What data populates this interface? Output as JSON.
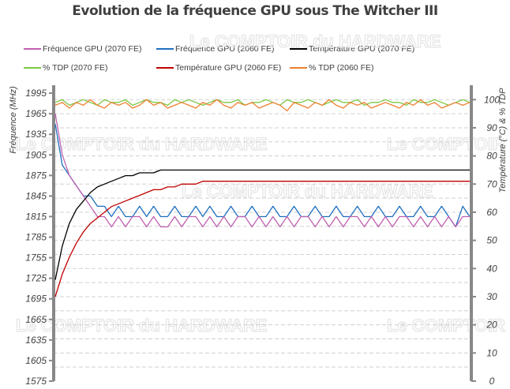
{
  "chart_data": {
    "type": "line",
    "title": "Evolution de la fréquence GPU sous The Witcher III",
    "ylabel": "Fréquence (MHz)",
    "y2label": "Température (°C) & % TDP",
    "ylim": [
      1575,
      2002
    ],
    "y2lim": [
      0,
      104
    ],
    "yticks": [
      1575,
      1605,
      1635,
      1665,
      1695,
      1725,
      1755,
      1785,
      1815,
      1845,
      1875,
      1905,
      1935,
      1965,
      1995
    ],
    "y2ticks": [
      0,
      10,
      20,
      30,
      40,
      50,
      60,
      70,
      80,
      90,
      100
    ],
    "grid": true,
    "legend_placement": "top",
    "x": [
      0,
      1,
      2,
      3,
      4,
      5,
      6,
      7,
      8,
      9,
      10,
      11,
      12,
      13,
      14,
      15,
      16,
      17,
      18,
      19,
      20,
      21,
      22,
      23,
      24,
      25,
      26,
      27,
      28,
      29,
      30,
      31,
      32,
      33,
      34,
      35,
      36,
      37,
      38,
      39,
      40,
      41,
      42,
      43,
      44,
      45,
      46,
      47,
      48,
      49,
      50,
      51,
      52,
      53,
      54,
      55,
      56,
      57,
      58,
      59
    ],
    "series": [
      {
        "name": "Fréquence GPU (2070 FE)",
        "axis": "left",
        "color": "#c060b0",
        "values": [
          1965,
          1905,
          1875,
          1860,
          1845,
          1830,
          1815,
          1815,
          1800,
          1815,
          1800,
          1815,
          1815,
          1800,
          1815,
          1800,
          1800,
          1815,
          1800,
          1815,
          1815,
          1800,
          1815,
          1800,
          1815,
          1800,
          1815,
          1815,
          1800,
          1815,
          1800,
          1815,
          1800,
          1815,
          1800,
          1815,
          1815,
          1800,
          1815,
          1800,
          1815,
          1800,
          1815,
          1815,
          1800,
          1815,
          1800,
          1815,
          1800,
          1815,
          1815,
          1800,
          1815,
          1800,
          1815,
          1800,
          1815,
          1800,
          1815,
          1815
        ]
      },
      {
        "name": "Fréquence GPU (2060 FE)",
        "axis": "left",
        "color": "#1f6fbf",
        "values": [
          1950,
          1890,
          1875,
          1860,
          1845,
          1845,
          1830,
          1830,
          1815,
          1830,
          1815,
          1815,
          1830,
          1815,
          1830,
          1815,
          1815,
          1830,
          1815,
          1815,
          1830,
          1815,
          1830,
          1815,
          1815,
          1830,
          1815,
          1815,
          1830,
          1815,
          1815,
          1830,
          1815,
          1815,
          1830,
          1815,
          1815,
          1830,
          1815,
          1815,
          1830,
          1815,
          1815,
          1830,
          1815,
          1815,
          1830,
          1815,
          1815,
          1830,
          1815,
          1815,
          1830,
          1815,
          1815,
          1830,
          1815,
          1800,
          1830,
          1815
        ]
      },
      {
        "name": "Température GPU  (2070 FE)",
        "axis": "right",
        "color": "#000000",
        "values": [
          36,
          48,
          56,
          61,
          64,
          67,
          69,
          70,
          71,
          72,
          73,
          73,
          74,
          74,
          74,
          75,
          75,
          75,
          75,
          75,
          75,
          75,
          75,
          75,
          75,
          75,
          75,
          75,
          75,
          75,
          75,
          75,
          75,
          75,
          75,
          75,
          75,
          75,
          75,
          75,
          75,
          75,
          75,
          75,
          75,
          75,
          75,
          75,
          75,
          75,
          75,
          75,
          75,
          75,
          75,
          75,
          75,
          75,
          75,
          75
        ]
      },
      {
        "name": "% TDP (2070 FE)",
        "axis": "right",
        "color": "#7ac943",
        "values": [
          99,
          100,
          98,
          99,
          100,
          99,
          98,
          100,
          99,
          99,
          100,
          98,
          99,
          100,
          99,
          99,
          98,
          100,
          99,
          100,
          99,
          98,
          99,
          100,
          99,
          99,
          100,
          98,
          99,
          99,
          100,
          99,
          98,
          100,
          99,
          99,
          100,
          99,
          98,
          99,
          100,
          99,
          99,
          100,
          98,
          99,
          99,
          100,
          99,
          99,
          98,
          100,
          99,
          99,
          100,
          99,
          98,
          99,
          100,
          99
        ]
      },
      {
        "name": "Température GPU  (2060 FE)",
        "axis": "right",
        "color": "#c00000",
        "values": [
          30,
          38,
          44,
          49,
          53,
          56,
          58,
          60,
          62,
          63,
          64,
          65,
          66,
          67,
          68,
          68,
          69,
          69,
          70,
          70,
          70,
          71,
          71,
          71,
          71,
          71,
          71,
          71,
          71,
          71,
          71,
          71,
          71,
          71,
          71,
          71,
          71,
          71,
          71,
          71,
          71,
          71,
          71,
          71,
          71,
          71,
          71,
          71,
          71,
          71,
          71,
          71,
          71,
          71,
          71,
          71,
          71,
          71,
          71,
          71
        ]
      },
      {
        "name": "% TDP (2060 FE)",
        "axis": "right",
        "color": "#f08030",
        "values": [
          98,
          99,
          97,
          99,
          98,
          100,
          98,
          97,
          99,
          98,
          99,
          97,
          98,
          100,
          98,
          99,
          97,
          98,
          99,
          98,
          97,
          99,
          98,
          100,
          98,
          97,
          99,
          98,
          99,
          97,
          98,
          99,
          98,
          96,
          99,
          98,
          97,
          99,
          98,
          100,
          98,
          97,
          99,
          98,
          99,
          97,
          98,
          99,
          98,
          97,
          99,
          98,
          100,
          98,
          99,
          97,
          98,
          99,
          98,
          99
        ]
      }
    ]
  },
  "watermark": "Le COMPTOIR du HARDWARE"
}
